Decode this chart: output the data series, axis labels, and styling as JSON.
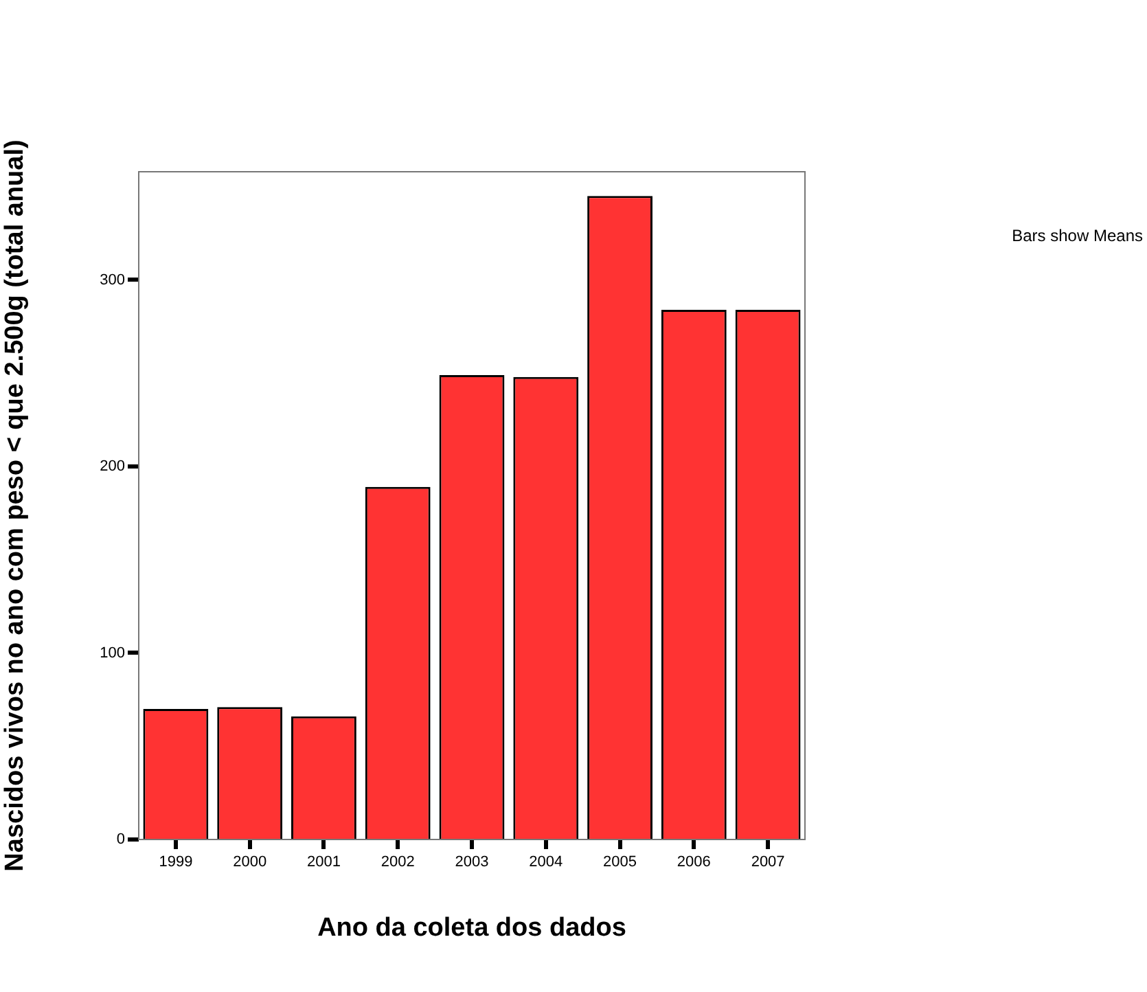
{
  "chart_data": {
    "type": "bar",
    "xlabel": "Ano da coleta dos dados",
    "ylabel": "Nascidos vivos no ano com peso < que 2.500g (total anual)",
    "categories": [
      "1999",
      "2000",
      "2001",
      "2002",
      "2003",
      "2004",
      "2005",
      "2006",
      "2007"
    ],
    "values": [
      70,
      71,
      66,
      189,
      249,
      248,
      345,
      284,
      284
    ],
    "color": "#ff3333",
    "ylim": [
      0,
      358
    ],
    "yticks": [
      0,
      100,
      200,
      300
    ],
    "grid": false,
    "legend": false,
    "annotations": [
      "Bars show Means"
    ]
  }
}
